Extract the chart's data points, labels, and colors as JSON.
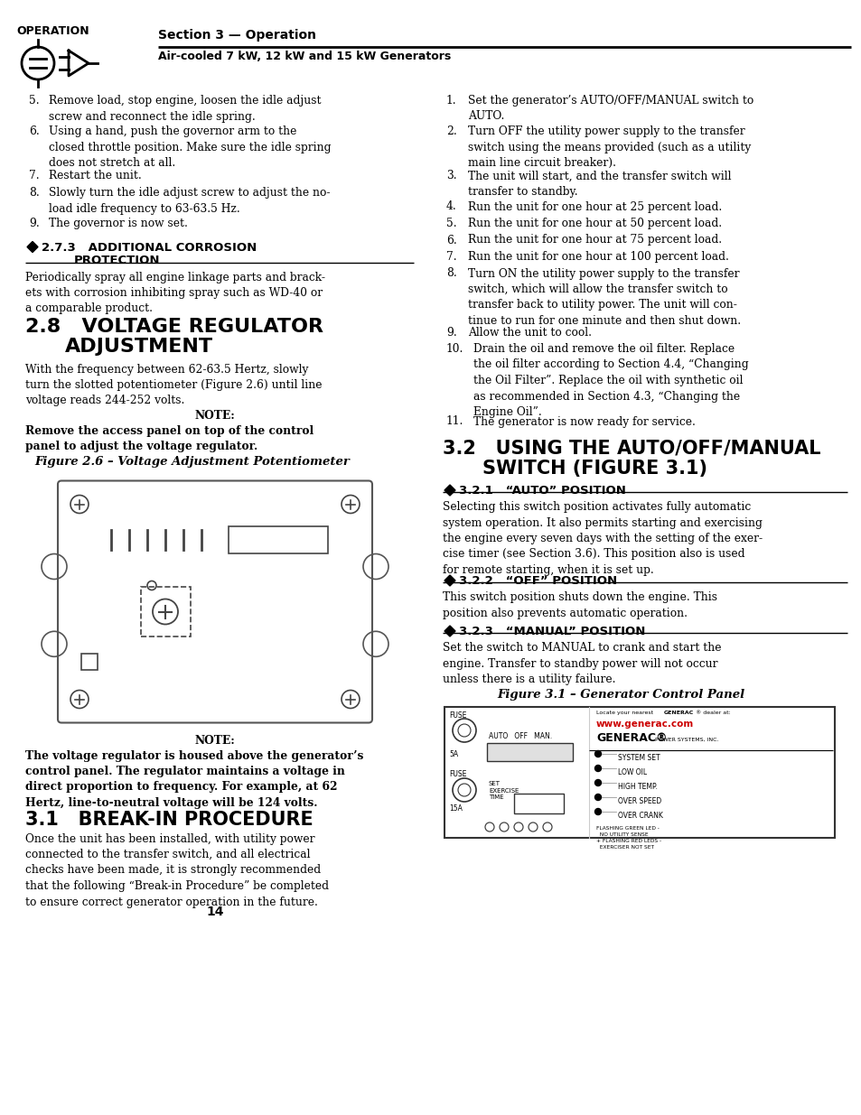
{
  "bg_color": "#ffffff",
  "text_color": "#000000",
  "header": {
    "section_label": "OPERATION",
    "section_title": "Section 3 — Operation",
    "section_subtitle": "Air-cooled 7 kW, 12 kW and 15 kW Generators"
  },
  "left_col": {
    "items": [
      [
        "5.",
        "Remove load, stop engine, loosen the idle adjust\nscrew and reconnect the idle spring."
      ],
      [
        "6.",
        "Using a hand, push the governor arm to the\nclosed throttle position. Make sure the idle spring\ndoes not stretch at all."
      ],
      [
        "7.",
        "Restart the unit."
      ],
      [
        "8.",
        "Slowly turn the idle adjust screw to adjust the no-\nload idle frequency to 63-63.5 Hz."
      ],
      [
        "9.",
        "The governor is now set."
      ]
    ],
    "sub273_title1": "2.7.3   ADDITIONAL CORROSION",
    "sub273_title2": "PROTECTION",
    "sub273_body": "Periodically spray all engine linkage parts and brack-\nets with corrosion inhibiting spray such as WD-40 or\na comparable product.",
    "sec28_title1": "2.8   VOLTAGE REGULATOR",
    "sec28_title2": "ADJUSTMENT",
    "sec28_body": "With the frequency between 62-63.5 Hertz, slowly\nturn the slotted potentiometer (Figure 2.6) until line\nvoltage reads 244-252 volts.",
    "note1_title": "NOTE:",
    "note1_body": "Remove the access panel on top of the control\npanel to adjust the voltage regulator.",
    "fig26_caption": "Figure 2.6 – Voltage Adjustment Potentiometer",
    "note2_title": "NOTE:",
    "note2_body": "The voltage regulator is housed above the generator’s\ncontrol panel. The regulator maintains a voltage in\ndirect proportion to frequency. For example, at 62\nHertz, line-to-neutral voltage will be 124 volts.",
    "sec31_title": "3.1   BREAK-IN PROCEDURE",
    "sec31_body": "Once the unit has been installed, with utility power\nconnected to the transfer switch, and all electrical\nchecks have been made, it is strongly recommended\nthat the following “Break-in Procedure” be completed\nto ensure correct generator operation in the future.",
    "page_number": "14"
  },
  "right_col": {
    "items": [
      [
        "1.",
        "Set the generator’s AUTO/OFF/MANUAL switch to\nAUTO."
      ],
      [
        "2.",
        "Turn OFF the utility power supply to the transfer\nswitch using the means provided (such as a utility\nmain line circuit breaker)."
      ],
      [
        "3.",
        "The unit will start, and the transfer switch will\ntransfer to standby."
      ],
      [
        "4.",
        "Run the unit for one hour at 25 percent load."
      ],
      [
        "5.",
        "Run the unit for one hour at 50 percent load."
      ],
      [
        "6.",
        "Run the unit for one hour at 75 percent load."
      ],
      [
        "7.",
        "Run the unit for one hour at 100 percent load."
      ],
      [
        "8.",
        "Turn ON the utility power supply to the transfer\nswitch, which will allow the transfer switch to\ntransfer back to utility power. The unit will con-\ntinue to run for one minute and then shut down."
      ],
      [
        "9.",
        "Allow the unit to cool."
      ],
      [
        "10.",
        "Drain the oil and remove the oil filter. Replace\nthe oil filter according to Section 4.4, “Changing\nthe Oil Filter”. Replace the oil with synthetic oil\nas recommended in Section 4.3, “Changing the\nEngine Oil”."
      ],
      [
        "11.",
        "The generator is now ready for service."
      ]
    ],
    "sec32_title1": "3.2   USING THE AUTO/OFF/MANUAL",
    "sec32_title2": "SWITCH (FIGURE 3.1)",
    "sub321_title": "3.2.1   “AUTO” POSITION",
    "sub321_body": "Selecting this switch position activates fully automatic\nsystem operation. It also permits starting and exercising\nthe engine every seven days with the setting of the exer-\ncise timer (see Section 3.6). This position also is used\nfor remote starting, when it is set up.",
    "sub322_title": "3.2.2   “OFF” POSITION",
    "sub322_body": "This switch position shuts down the engine. This\nposition also prevents automatic operation.",
    "sub323_title": "3.2.3   “MANUAL” POSITION",
    "sub323_body": "Set the switch to MANUAL to crank and start the\nengine. Transfer to standby power will not occur\nunless there is a utility failure.",
    "fig31_caption": "Figure 3.1 – Generator Control Panel"
  }
}
